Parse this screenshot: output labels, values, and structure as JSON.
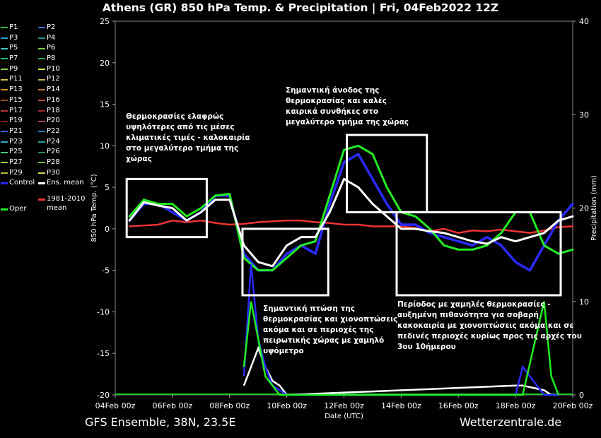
{
  "title": "Athens  (GR)  850 hPa Temp. & Precipitation | Fri, 04Feb2022 12Z",
  "footer": {
    "left": "GFS Ensemble, 38N, 23.5E",
    "right": "Wetterzentrale.de"
  },
  "legend": {
    "members": [
      "P1",
      "P2",
      "P3",
      "P4",
      "P5",
      "P6",
      "P7",
      "P8",
      "P9",
      "P10",
      "P11",
      "P12",
      "P13",
      "P14",
      "P15",
      "P16",
      "P17",
      "P18",
      "P19",
      "P20",
      "P21",
      "P22",
      "P23",
      "P24",
      "P25",
      "P26",
      "P27",
      "P28",
      "P29",
      "P30"
    ],
    "member_colors": [
      "#3cb44b",
      "#2f6fd6",
      "#2a9fd6",
      "#1d8f8a",
      "#3ec7c7",
      "#7ac943",
      "#2fbf71",
      "#17a34a",
      "#8fd14f",
      "#c8e64a",
      "#d4c04a",
      "#c9b24a",
      "#d8902e",
      "#c07a2a",
      "#a0522d",
      "#c04a3a",
      "#b5333a",
      "#a02a2a",
      "#8b1a1a",
      "#b0406a",
      "#3a62d6",
      "#1f78b4",
      "#3ea6c8",
      "#1fa89a",
      "#50c878",
      "#2e8b57",
      "#9bd44a",
      "#6dbf3a",
      "#b8b83a",
      "#d6d64a"
    ],
    "control": "Control",
    "ens_mean": "Ens. mean",
    "oper": "Oper",
    "clim_line1": "1981-2010",
    "clim_line2": "mean",
    "control_color": "#2a2aff",
    "mean_color": "#ffffff",
    "oper_color": "#22ee22",
    "clim_color": "#ee3333"
  },
  "annotations": [
    "Θερμοκρασίες ελαφρώς\nυψηλότερες από τις μέσες\nκλιματικές τιμές - καλοκαιρία\nστο μεγαλύτερο τμήμα της\nχώρας",
    "Σημαντική άνοδος της\nθερμοκρασίας και καλές\nκαιρικά συνθήκες στο\nμεγαλύτερο τμήμα της χώρας",
    "Σημαντική πτώση της\nθερμοκρασίας και χιονοπτώσεις\nακόμα και σε περιοχές της\nπειρωτικής χώρας με χαμηλό\nυψόμετρο",
    "Περίοδος με χαμηλές θερμοκρασίες -\nαυξημένη πιθανότητα για σοβαρή\nκακοκαιρία με χιονοπτώσεις ακόμα και σε\nπεδινές περιοχές κυρίως προς τις αρχές του\n3ου 10ήμερου"
  ],
  "chart_data": {
    "type": "line",
    "title": "Athens  (GR)  850 hPa Temp. & Precipitation | Fri, 04Feb2022 12Z",
    "xlabel": "Date (UTC)",
    "ylabel": "850 hPa Temp. (°C)",
    "y2label": "Precipitation (mm)",
    "ylim": [
      -20,
      25
    ],
    "y2lim": [
      0,
      40
    ],
    "yticks": [
      -20,
      -15,
      -10,
      -5,
      0,
      5,
      10,
      15,
      20,
      25
    ],
    "y2ticks": [
      0,
      10,
      20,
      30,
      40
    ],
    "x_range_days": [
      0,
      16
    ],
    "xticks": [
      {
        "day": 0,
        "label": "04Feb 00z"
      },
      {
        "day": 2,
        "label": "06Feb 00z"
      },
      {
        "day": 4,
        "label": "08Feb 00z"
      },
      {
        "day": 6,
        "label": "10Feb 00z"
      },
      {
        "day": 8,
        "label": "12Feb 00z"
      },
      {
        "day": 10,
        "label": "14Feb 00z"
      },
      {
        "day": 12,
        "label": "16Feb 00z"
      },
      {
        "day": 14,
        "label": "18Feb 00z"
      },
      {
        "day": 16,
        "label": "20Feb 00z"
      }
    ],
    "grid": false,
    "temperature": {
      "x": [
        0.5,
        1,
        1.5,
        2,
        2.5,
        3,
        3.5,
        4,
        4.5,
        5,
        5.5,
        6,
        6.5,
        7,
        7.5,
        8,
        8.5,
        9,
        9.5,
        10,
        10.5,
        11,
        11.5,
        12,
        12.5,
        13,
        13.5,
        14,
        14.5,
        15,
        15.5,
        16
      ],
      "control": [
        1,
        3,
        3,
        2,
        1,
        2,
        4,
        4,
        -3,
        -5,
        -5,
        -3,
        -2,
        -3,
        3,
        8,
        9,
        6,
        3,
        0.5,
        0.5,
        -0.5,
        -1,
        -1.5,
        -2,
        -1,
        -2,
        -4,
        -5,
        -2,
        1,
        3
      ],
      "ens_mean": [
        1,
        3.2,
        2.8,
        2.5,
        1,
        2,
        3.5,
        3.5,
        -2,
        -4,
        -4.5,
        -2,
        -1,
        -1,
        2,
        6,
        5,
        3,
        1.5,
        0,
        0,
        -0.3,
        -0.5,
        -1,
        -1.5,
        -1.8,
        -1,
        -1.5,
        -1,
        -0.5,
        1,
        1.5
      ],
      "oper": [
        1.5,
        3.5,
        3,
        3,
        1.5,
        2.5,
        4,
        4.2,
        -3.5,
        -5,
        -5,
        -3.5,
        -2,
        -1.5,
        4,
        9.5,
        10,
        9,
        5,
        2,
        1.5,
        0,
        -2,
        -2.5,
        -2.5,
        -2,
        -0.5,
        2,
        2,
        -2,
        -3,
        -2.5
      ],
      "clim_mean": [
        0.3,
        0.4,
        0.5,
        1.0,
        0.8,
        1.0,
        0.7,
        0.5,
        0.6,
        0.8,
        0.9,
        1.0,
        1.0,
        0.8,
        0.7,
        0.5,
        0.5,
        0.3,
        0.3,
        0.3,
        0.1,
        -0.3,
        0,
        -0.5,
        -0.2,
        -0.3,
        -0.1,
        -0.3,
        -0.5,
        -0.2,
        0.2,
        0.3
      ]
    },
    "precipitation": {
      "x": [
        4.5,
        4.75,
        5,
        5.25,
        5.5,
        5.75,
        6,
        14,
        14.25,
        15,
        15.25,
        15.5
      ],
      "control": [
        2,
        14,
        6,
        3,
        1,
        0.5,
        0,
        0,
        3,
        0,
        0,
        0
      ],
      "ens_mean": [
        1,
        3,
        5,
        3,
        1.5,
        1,
        0,
        1,
        1,
        0.5,
        0,
        0
      ],
      "oper": [
        3,
        10,
        6,
        2,
        1,
        0,
        0,
        0,
        0,
        10,
        2,
        0
      ]
    }
  }
}
